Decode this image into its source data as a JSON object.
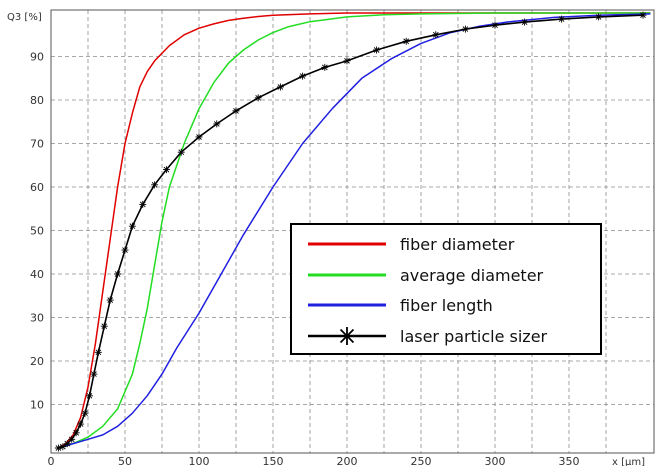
{
  "chart_data": {
    "type": "line",
    "ylabel": "Q3 [%]",
    "xlabel": "x [µm]",
    "xlim": [
      0,
      405
    ],
    "ylim": [
      -2,
      101
    ],
    "x_ticks": [
      0,
      50,
      100,
      150,
      200,
      250,
      300,
      350
    ],
    "y_ticks": [
      10,
      20,
      30,
      40,
      50,
      60,
      70,
      80,
      90
    ],
    "grid": true,
    "legend_position": "center-right",
    "series": [
      {
        "name": "fiber diameter",
        "color": "#e00000",
        "marker": "none",
        "points": [
          [
            5,
            0
          ],
          [
            10,
            1
          ],
          [
            15,
            3
          ],
          [
            20,
            7
          ],
          [
            25,
            14
          ],
          [
            30,
            24
          ],
          [
            35,
            36
          ],
          [
            40,
            48
          ],
          [
            45,
            60
          ],
          [
            50,
            70
          ],
          [
            55,
            77
          ],
          [
            60,
            83
          ],
          [
            65,
            86.5
          ],
          [
            70,
            89
          ],
          [
            80,
            92.5
          ],
          [
            90,
            95
          ],
          [
            100,
            96.5
          ],
          [
            110,
            97.5
          ],
          [
            120,
            98.3
          ],
          [
            130,
            98.8
          ],
          [
            140,
            99.2
          ],
          [
            150,
            99.5
          ],
          [
            175,
            99.8
          ],
          [
            200,
            100
          ],
          [
            405,
            100
          ]
        ]
      },
      {
        "name": "average diameter",
        "color": "#22dd22",
        "marker": "none",
        "points": [
          [
            5,
            0
          ],
          [
            15,
            1
          ],
          [
            25,
            2.5
          ],
          [
            35,
            5
          ],
          [
            45,
            9
          ],
          [
            55,
            17
          ],
          [
            60,
            24
          ],
          [
            65,
            32
          ],
          [
            70,
            42
          ],
          [
            75,
            52
          ],
          [
            80,
            60
          ],
          [
            90,
            70
          ],
          [
            100,
            78
          ],
          [
            110,
            84
          ],
          [
            120,
            88.5
          ],
          [
            130,
            91.5
          ],
          [
            140,
            93.8
          ],
          [
            150,
            95.5
          ],
          [
            160,
            96.8
          ],
          [
            175,
            98
          ],
          [
            200,
            99.1
          ],
          [
            225,
            99.6
          ],
          [
            250,
            99.8
          ],
          [
            300,
            100
          ],
          [
            405,
            100
          ]
        ]
      },
      {
        "name": "fiber length",
        "color": "#2020e0",
        "marker": "none",
        "points": [
          [
            5,
            0
          ],
          [
            15,
            1
          ],
          [
            25,
            2
          ],
          [
            35,
            3
          ],
          [
            45,
            5
          ],
          [
            55,
            8
          ],
          [
            65,
            12
          ],
          [
            75,
            17
          ],
          [
            85,
            23
          ],
          [
            100,
            31
          ],
          [
            115,
            40
          ],
          [
            130,
            49
          ],
          [
            150,
            60
          ],
          [
            170,
            70
          ],
          [
            190,
            78
          ],
          [
            210,
            85
          ],
          [
            230,
            89.5
          ],
          [
            250,
            93
          ],
          [
            270,
            95.5
          ],
          [
            290,
            97
          ],
          [
            310,
            98
          ],
          [
            340,
            99
          ],
          [
            370,
            99.5
          ],
          [
            405,
            99.8
          ]
        ]
      },
      {
        "name": "laser particle sizer",
        "color": "#000000",
        "marker": "star",
        "points": [
          [
            5,
            0
          ],
          [
            8,
            0.3
          ],
          [
            11,
            1
          ],
          [
            14,
            2
          ],
          [
            17,
            3.5
          ],
          [
            20,
            5.5
          ],
          [
            23,
            8
          ],
          [
            26,
            12
          ],
          [
            29,
            17
          ],
          [
            32,
            22
          ],
          [
            36,
            28
          ],
          [
            40,
            34
          ],
          [
            45,
            40
          ],
          [
            50,
            45.5
          ],
          [
            55,
            51
          ],
          [
            62,
            56
          ],
          [
            70,
            60.5
          ],
          [
            78,
            64
          ],
          [
            88,
            68
          ],
          [
            100,
            71.5
          ],
          [
            112,
            74.5
          ],
          [
            125,
            77.5
          ],
          [
            140,
            80.5
          ],
          [
            155,
            83
          ],
          [
            170,
            85.5
          ],
          [
            185,
            87.5
          ],
          [
            200,
            89
          ],
          [
            220,
            91.5
          ],
          [
            240,
            93.5
          ],
          [
            260,
            95
          ],
          [
            280,
            96.3
          ],
          [
            300,
            97.2
          ],
          [
            320,
            97.9
          ],
          [
            345,
            98.6
          ],
          [
            370,
            99.1
          ],
          [
            400,
            99.5
          ]
        ]
      }
    ]
  }
}
